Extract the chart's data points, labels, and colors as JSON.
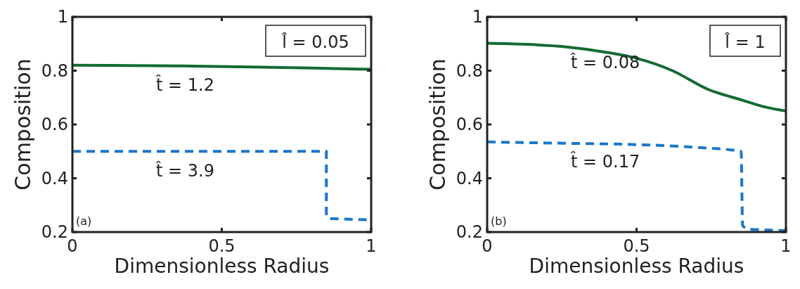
{
  "chart_data": [
    {
      "type": "line",
      "xlabel": "Dimensionless Radius",
      "ylabel": "Composition",
      "xlim": [
        0,
        1
      ],
      "ylim": [
        0.2,
        1
      ],
      "xticks": [
        0,
        0.5,
        1
      ],
      "yticks": [
        0.2,
        0.4,
        0.6,
        0.8,
        1
      ],
      "grid": false,
      "annotations": [
        "l̂ = 0.05",
        "(a)"
      ],
      "series": [
        {
          "name": "t̂ = 1.2",
          "color": "#136b33",
          "line_style": "solid",
          "x": [
            0,
            0.2,
            0.4,
            0.6,
            0.8,
            1
          ],
          "values": [
            0.82,
            0.819,
            0.817,
            0.814,
            0.81,
            0.805
          ]
        },
        {
          "name": "t̂ = 3.9",
          "color": "#1a77c9",
          "line_style": "dashed",
          "x": [
            0,
            0.3,
            0.6,
            0.85,
            0.85,
            0.86,
            1
          ],
          "values": [
            0.5,
            0.5,
            0.5,
            0.5,
            0.26,
            0.25,
            0.245
          ]
        }
      ]
    },
    {
      "type": "line",
      "xlabel": "Dimensionless Radius",
      "ylabel": "Composition",
      "xlim": [
        0,
        1
      ],
      "ylim": [
        0.2,
        1
      ],
      "xticks": [
        0,
        0.5,
        1
      ],
      "yticks": [
        0.2,
        0.4,
        0.6,
        0.8,
        1
      ],
      "grid": false,
      "annotations": [
        "l̂ = 1",
        "(b)"
      ],
      "series": [
        {
          "name": "t̂ = 0.08",
          "color": "#136b33",
          "line_style": "solid",
          "x": [
            0,
            0.13,
            0.26,
            0.4,
            0.5,
            0.62,
            0.74,
            0.855,
            0.93,
            1
          ],
          "values": [
            0.902,
            0.898,
            0.889,
            0.868,
            0.846,
            0.8,
            0.73,
            0.69,
            0.665,
            0.65
          ]
        },
        {
          "name": "t̂ = 0.17",
          "color": "#1a77c9",
          "line_style": "dashed",
          "x": [
            0,
            0.26,
            0.5,
            0.7,
            0.85,
            0.855,
            0.865,
            0.88,
            0.95,
            1
          ],
          "values": [
            0.535,
            0.53,
            0.525,
            0.515,
            0.5,
            0.224,
            0.215,
            0.21,
            0.207,
            0.205
          ]
        }
      ]
    }
  ]
}
